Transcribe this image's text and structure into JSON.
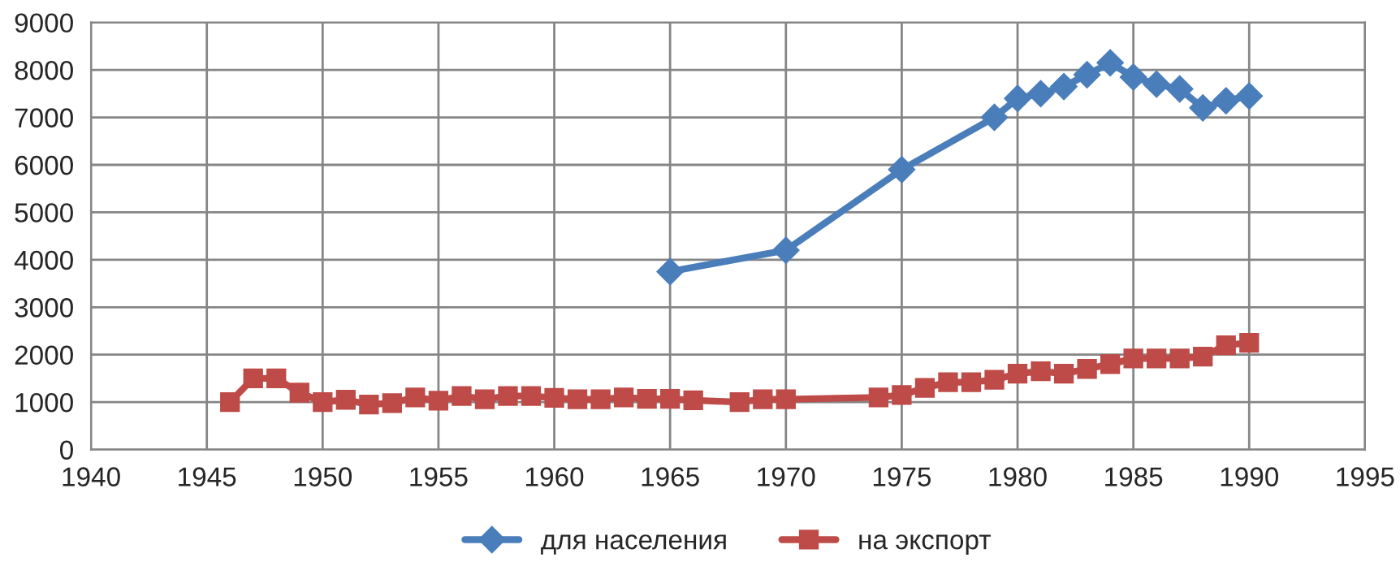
{
  "chart_data": {
    "type": "line",
    "xlim": [
      1940,
      1995
    ],
    "xticks": [
      1940,
      1945,
      1950,
      1955,
      1960,
      1965,
      1970,
      1975,
      1980,
      1985,
      1990,
      1995
    ],
    "ylim": [
      0,
      9000
    ],
    "yticks": [
      0,
      1000,
      2000,
      3000,
      4000,
      5000,
      6000,
      7000,
      8000,
      9000
    ],
    "grid": true,
    "legend": "bottom",
    "series": [
      {
        "name": "для населения",
        "color": "#4a7ebb",
        "marker": "diamond",
        "x": [
          1965,
          1970,
          1975,
          1979,
          1980,
          1981,
          1982,
          1983,
          1984,
          1985,
          1986,
          1987,
          1988,
          1989,
          1990
        ],
        "values": [
          3750,
          4200,
          5900,
          7000,
          7400,
          7500,
          7650,
          7900,
          8150,
          7850,
          7700,
          7600,
          7200,
          7350,
          7450
        ]
      },
      {
        "name": "на экспорт",
        "color": "#be4b48",
        "marker": "square",
        "x": [
          1946,
          1947,
          1948,
          1949,
          1950,
          1951,
          1952,
          1953,
          1954,
          1955,
          1956,
          1957,
          1958,
          1959,
          1960,
          1961,
          1962,
          1963,
          1964,
          1965,
          1966,
          1968,
          1969,
          1970,
          1974,
          1975,
          1976,
          1977,
          1978,
          1979,
          1980,
          1981,
          1982,
          1983,
          1984,
          1985,
          1986,
          1987,
          1988,
          1989,
          1990
        ],
        "values": [
          1000,
          1500,
          1500,
          1200,
          1000,
          1050,
          950,
          980,
          1100,
          1030,
          1130,
          1060,
          1130,
          1130,
          1090,
          1060,
          1060,
          1100,
          1070,
          1070,
          1040,
          1000,
          1060,
          1060,
          1100,
          1150,
          1300,
          1420,
          1420,
          1470,
          1600,
          1650,
          1600,
          1700,
          1800,
          1920,
          1920,
          1920,
          1960,
          2200,
          2250
        ]
      }
    ]
  }
}
